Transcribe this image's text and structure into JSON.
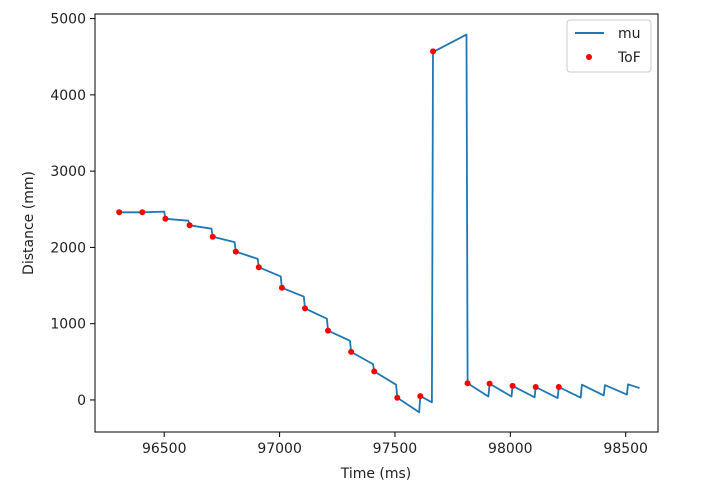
{
  "chart_data": {
    "type": "line",
    "xlabel": "Time (ms)",
    "ylabel": "Distance (mm)",
    "xlim": [
      96200,
      98640
    ],
    "ylim": [
      -420,
      5060
    ],
    "xticks": [
      96500,
      97000,
      97500,
      98000,
      98500
    ],
    "yticks": [
      0,
      1000,
      2000,
      3000,
      4000,
      5000
    ],
    "grid": false,
    "legend_position": "top-right",
    "series": [
      {
        "name": "mu",
        "kind": "line",
        "color": "#1f77b4",
        "points": [
          [
            96300,
            2460
          ],
          [
            96410,
            2460
          ],
          [
            96500,
            2470
          ],
          [
            96505,
            2375
          ],
          [
            96605,
            2350
          ],
          [
            96610,
            2290
          ],
          [
            96705,
            2245
          ],
          [
            96710,
            2140
          ],
          [
            96805,
            2070
          ],
          [
            96810,
            1945
          ],
          [
            96905,
            1850
          ],
          [
            96910,
            1740
          ],
          [
            97005,
            1620
          ],
          [
            97010,
            1470
          ],
          [
            97105,
            1355
          ],
          [
            97110,
            1200
          ],
          [
            97205,
            1065
          ],
          [
            97210,
            910
          ],
          [
            97305,
            775
          ],
          [
            97310,
            630
          ],
          [
            97405,
            470
          ],
          [
            97410,
            375
          ],
          [
            97505,
            200
          ],
          [
            97510,
            30
          ],
          [
            97605,
            -160
          ],
          [
            97610,
            50
          ],
          [
            97660,
            -30
          ],
          [
            97665,
            4560
          ],
          [
            97810,
            4790
          ],
          [
            97815,
            220
          ],
          [
            97905,
            45
          ],
          [
            97910,
            215
          ],
          [
            98005,
            45
          ],
          [
            98010,
            185
          ],
          [
            98105,
            35
          ],
          [
            98110,
            170
          ],
          [
            98205,
            25
          ],
          [
            98210,
            170
          ],
          [
            98305,
            30
          ],
          [
            98310,
            200
          ],
          [
            98405,
            60
          ],
          [
            98410,
            195
          ],
          [
            98505,
            70
          ],
          [
            98510,
            205
          ],
          [
            98560,
            155
          ]
        ]
      },
      {
        "name": "ToF",
        "kind": "scatter",
        "color": "#ff0000",
        "points": [
          [
            96305,
            2460
          ],
          [
            96405,
            2460
          ],
          [
            96505,
            2375
          ],
          [
            96610,
            2290
          ],
          [
            96710,
            2140
          ],
          [
            96810,
            1945
          ],
          [
            96910,
            1740
          ],
          [
            97010,
            1470
          ],
          [
            97110,
            1200
          ],
          [
            97210,
            910
          ],
          [
            97310,
            630
          ],
          [
            97410,
            375
          ],
          [
            97510,
            30
          ],
          [
            97610,
            50
          ],
          [
            97665,
            4570
          ],
          [
            97815,
            220
          ],
          [
            97910,
            215
          ],
          [
            98010,
            185
          ],
          [
            98110,
            170
          ],
          [
            98210,
            170
          ]
        ]
      }
    ]
  }
}
